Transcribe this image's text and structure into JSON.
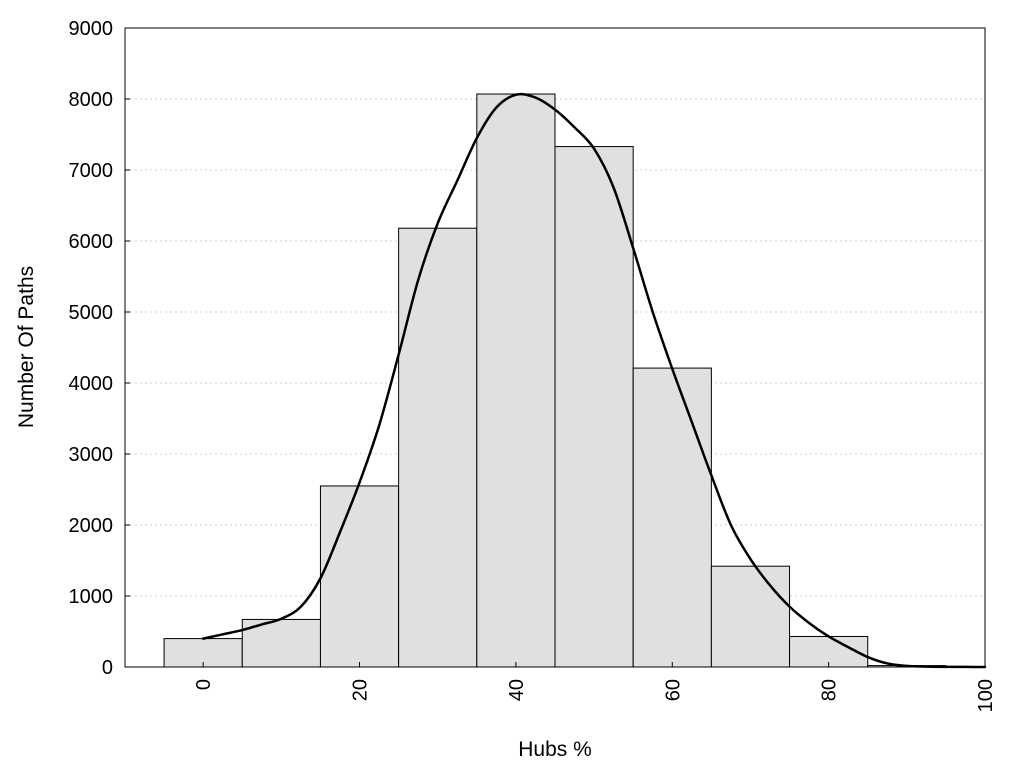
{
  "chart_data": {
    "type": "bar",
    "xlabel": "Hubs %",
    "ylabel": "Number Of Paths",
    "xlim": [
      -10,
      100
    ],
    "ylim": [
      0,
      9000
    ],
    "x_ticks": [
      "0",
      "20",
      "40",
      "60",
      "80",
      "100"
    ],
    "y_ticks": [
      "0",
      "1000",
      "2000",
      "3000",
      "4000",
      "5000",
      "6000",
      "7000",
      "8000",
      "9000"
    ],
    "bin_width": 10,
    "bins": [
      {
        "x": 0,
        "value": 400
      },
      {
        "x": 10,
        "value": 670
      },
      {
        "x": 20,
        "value": 2550
      },
      {
        "x": 30,
        "value": 6180
      },
      {
        "x": 40,
        "value": 8070
      },
      {
        "x": 50,
        "value": 7330
      },
      {
        "x": 60,
        "value": 4210
      },
      {
        "x": 70,
        "value": 1420
      },
      {
        "x": 80,
        "value": 430
      },
      {
        "x": 90,
        "value": 20
      }
    ],
    "curve": [
      [
        0,
        400
      ],
      [
        2.5,
        460
      ],
      [
        5,
        520
      ],
      [
        7.5,
        600
      ],
      [
        10,
        680
      ],
      [
        12.5,
        850
      ],
      [
        15,
        1250
      ],
      [
        17.5,
        1900
      ],
      [
        20,
        2600
      ],
      [
        22.5,
        3400
      ],
      [
        25,
        4400
      ],
      [
        27.5,
        5450
      ],
      [
        30,
        6250
      ],
      [
        32.5,
        6850
      ],
      [
        35,
        7450
      ],
      [
        37.5,
        7880
      ],
      [
        40,
        8060
      ],
      [
        42.5,
        8020
      ],
      [
        45,
        7850
      ],
      [
        47.5,
        7600
      ],
      [
        50,
        7300
      ],
      [
        52.5,
        6750
      ],
      [
        55,
        5900
      ],
      [
        57.5,
        5000
      ],
      [
        60,
        4200
      ],
      [
        62.5,
        3450
      ],
      [
        65,
        2700
      ],
      [
        67.5,
        2000
      ],
      [
        70,
        1520
      ],
      [
        72.5,
        1150
      ],
      [
        75,
        850
      ],
      [
        77.5,
        620
      ],
      [
        80,
        430
      ],
      [
        82.5,
        280
      ],
      [
        85,
        140
      ],
      [
        87.5,
        50
      ],
      [
        90,
        15
      ],
      [
        92.5,
        5
      ],
      [
        95,
        2
      ],
      [
        97.5,
        1
      ],
      [
        100,
        0
      ]
    ],
    "grid": true,
    "bar_color": "#e0e0e0",
    "bar_edge_color": "#000000",
    "curve_color": "#000000",
    "grid_color": "#cfcfcf"
  }
}
